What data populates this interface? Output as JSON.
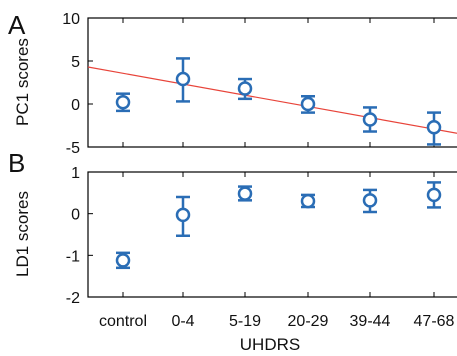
{
  "figure": {
    "x_axis_label": "UHDRS",
    "x_categories": [
      "control",
      "0-4",
      "5-19",
      "20-29",
      "39-44",
      "47-68"
    ]
  },
  "chart_data": [
    {
      "panel_label": "A",
      "type": "scatter",
      "ylabel": "PC1 scores",
      "ylim": [
        -5,
        10
      ],
      "yticks": [
        10,
        5,
        0,
        -5
      ],
      "grid": false,
      "points": [
        {
          "x": "control",
          "y": 0.2,
          "err_low": 1.0,
          "err_high": 1.0
        },
        {
          "x": "0-4",
          "y": 2.9,
          "err_low": 2.6,
          "err_high": 2.4
        },
        {
          "x": "5-19",
          "y": 1.8,
          "err_low": 1.2,
          "err_high": 1.1
        },
        {
          "x": "20-29",
          "y": 0.0,
          "err_low": 1.0,
          "err_high": 0.9
        },
        {
          "x": "39-44",
          "y": -1.8,
          "err_low": 1.4,
          "err_high": 1.4
        },
        {
          "x": "47-68",
          "y": -2.7,
          "err_low": 2.0,
          "err_high": 1.7
        }
      ],
      "trend_line": {
        "y_at_left_edge": 4.3,
        "y_at_right_edge": -3.4,
        "color": "#e8443a"
      },
      "marker_color": "#2a6db5"
    },
    {
      "panel_label": "B",
      "type": "scatter",
      "ylabel": "LD1 scores",
      "ylim": [
        -2,
        1
      ],
      "yticks": [
        1,
        0,
        -1,
        -2
      ],
      "grid": false,
      "points": [
        {
          "x": "control",
          "y": -1.12,
          "err_low": 0.18,
          "err_high": 0.18
        },
        {
          "x": "0-4",
          "y": -0.03,
          "err_low": 0.5,
          "err_high": 0.43
        },
        {
          "x": "5-19",
          "y": 0.48,
          "err_low": 0.16,
          "err_high": 0.17
        },
        {
          "x": "20-29",
          "y": 0.3,
          "err_low": 0.14,
          "err_high": 0.15
        },
        {
          "x": "39-44",
          "y": 0.32,
          "err_low": 0.28,
          "err_high": 0.25
        },
        {
          "x": "47-68",
          "y": 0.45,
          "err_low": 0.3,
          "err_high": 0.3
        }
      ],
      "marker_color": "#2a6db5"
    }
  ]
}
